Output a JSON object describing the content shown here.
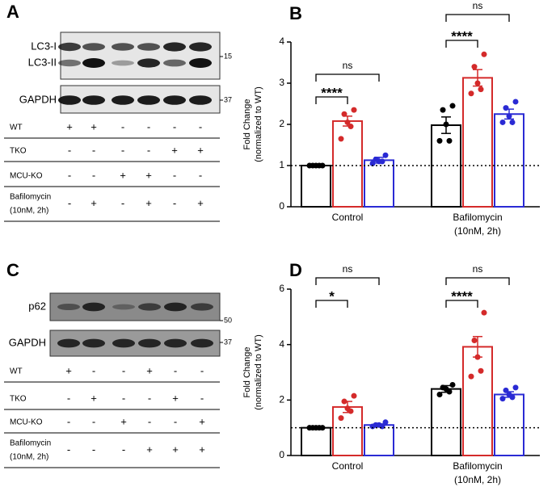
{
  "blots": [
    {
      "label": "A",
      "boxes": [
        {
          "bands": [
            "LC3-I",
            "LC3-II"
          ],
          "marker": 15
        },
        {
          "bands": [
            "GAPDH"
          ],
          "marker": 37
        }
      ],
      "conditions": [
        {
          "name": [
            "WT"
          ],
          "signs": [
            "+",
            "+",
            "-",
            "-",
            "-",
            "-"
          ]
        },
        {
          "name": [
            "TKO"
          ],
          "signs": [
            "-",
            "-",
            "-",
            "-",
            "+",
            "+"
          ]
        },
        {
          "name": [
            "MCU-KO"
          ],
          "signs": [
            "-",
            "-",
            "+",
            "+",
            "-",
            "-"
          ]
        },
        {
          "name": [
            "Bafilomycin",
            "(10nM, 2h)"
          ],
          "signs": [
            "-",
            "+",
            "-",
            "+",
            "-",
            "+"
          ]
        }
      ]
    },
    {
      "label": "C",
      "boxes": [
        {
          "bands": [
            "p62"
          ],
          "marker": 50
        },
        {
          "bands": [
            "GAPDH"
          ],
          "marker": 37
        }
      ],
      "conditions": [
        {
          "name": [
            "WT"
          ],
          "signs": [
            "+",
            "-",
            "-",
            "+",
            "-",
            "-"
          ]
        },
        {
          "name": [
            "TKO"
          ],
          "signs": [
            "-",
            "+",
            "-",
            "-",
            "+",
            "-"
          ]
        },
        {
          "name": [
            "MCU-KO"
          ],
          "signs": [
            "-",
            "-",
            "+",
            "-",
            "-",
            "+"
          ]
        },
        {
          "name": [
            "Bafilomycin",
            "(10nM, 2h)"
          ],
          "signs": [
            "-",
            "-",
            "-",
            "+",
            "+",
            "+"
          ]
        }
      ]
    }
  ],
  "chart_data": [
    {
      "type": "bar",
      "label": "B",
      "ylabel": [
        "Fold Change",
        "(normalized to WT)"
      ],
      "categories": [
        [
          "Control"
        ],
        [
          "Bafilomycin",
          "(10nM, 2h)"
        ]
      ],
      "ylim": [
        0,
        4
      ],
      "yticks": [
        0,
        1,
        2,
        3,
        4
      ],
      "refline": 1,
      "series": [
        {
          "color": "#000000",
          "values": [
            1.0,
            1.98
          ],
          "errors": [
            0.0,
            0.2
          ],
          "points": [
            [
              1.0,
              1.0,
              1.0,
              1.0,
              1.0
            ],
            [
              2.45,
              2.35,
              2.0,
              1.6,
              1.6
            ]
          ]
        },
        {
          "color": "#d42a2a",
          "values": [
            2.08,
            3.13
          ],
          "errors": [
            0.12,
            0.2
          ],
          "points": [
            [
              2.35,
              2.25,
              2.05,
              1.95,
              1.65
            ],
            [
              3.7,
              3.4,
              3.0,
              2.85,
              2.75
            ]
          ]
        },
        {
          "color": "#2a2ad4",
          "values": [
            1.13,
            2.25
          ],
          "errors": [
            0.07,
            0.12
          ],
          "points": [
            [
              1.25,
              1.15,
              1.1,
              1.1,
              1.05
            ],
            [
              2.55,
              2.4,
              2.2,
              2.05,
              2.05
            ]
          ]
        }
      ],
      "annotations": [
        {
          "text": "****",
          "category": 0,
          "series": [
            0,
            1
          ]
        },
        {
          "text": "ns",
          "category": 0,
          "series": [
            0,
            2
          ]
        },
        {
          "text": "****",
          "category": 1,
          "series": [
            0,
            1
          ]
        },
        {
          "text": "ns",
          "category": 1,
          "series": [
            0,
            2
          ]
        }
      ]
    },
    {
      "type": "bar",
      "label": "D",
      "ylabel": [
        "Fold Change",
        "(normalized to WT)"
      ],
      "categories": [
        [
          "Control"
        ],
        [
          "Bafilomycin",
          "(10nM, 2h)"
        ]
      ],
      "ylim": [
        0,
        6
      ],
      "yticks": [
        0,
        2,
        4,
        6
      ],
      "refline": 1,
      "series": [
        {
          "color": "#000000",
          "values": [
            1.0,
            2.4
          ],
          "errors": [
            0.0,
            0.12
          ],
          "points": [
            [
              1.0,
              1.0,
              1.0,
              1.0,
              1.0
            ],
            [
              2.55,
              2.45,
              2.4,
              2.3,
              2.2
            ]
          ]
        },
        {
          "color": "#d42a2a",
          "values": [
            1.75,
            3.92
          ],
          "errors": [
            0.2,
            0.37
          ],
          "points": [
            [
              2.15,
              1.95,
              1.7,
              1.6,
              1.35
            ],
            [
              5.15,
              4.15,
              3.55,
              3.05,
              2.85
            ]
          ]
        },
        {
          "color": "#2a2ad4",
          "values": [
            1.1,
            2.2
          ],
          "errors": [
            0.04,
            0.1
          ],
          "points": [
            [
              1.2,
              1.1,
              1.1,
              1.05,
              1.05
            ],
            [
              2.45,
              2.35,
              2.2,
              2.1,
              2.05
            ]
          ]
        }
      ],
      "annotations": [
        {
          "text": "*",
          "category": 0,
          "series": [
            0,
            1
          ]
        },
        {
          "text": "ns",
          "category": 0,
          "series": [
            0,
            2
          ]
        },
        {
          "text": "****",
          "category": 1,
          "series": [
            0,
            1
          ]
        },
        {
          "text": "ns",
          "category": 1,
          "series": [
            0,
            2
          ]
        }
      ]
    }
  ]
}
